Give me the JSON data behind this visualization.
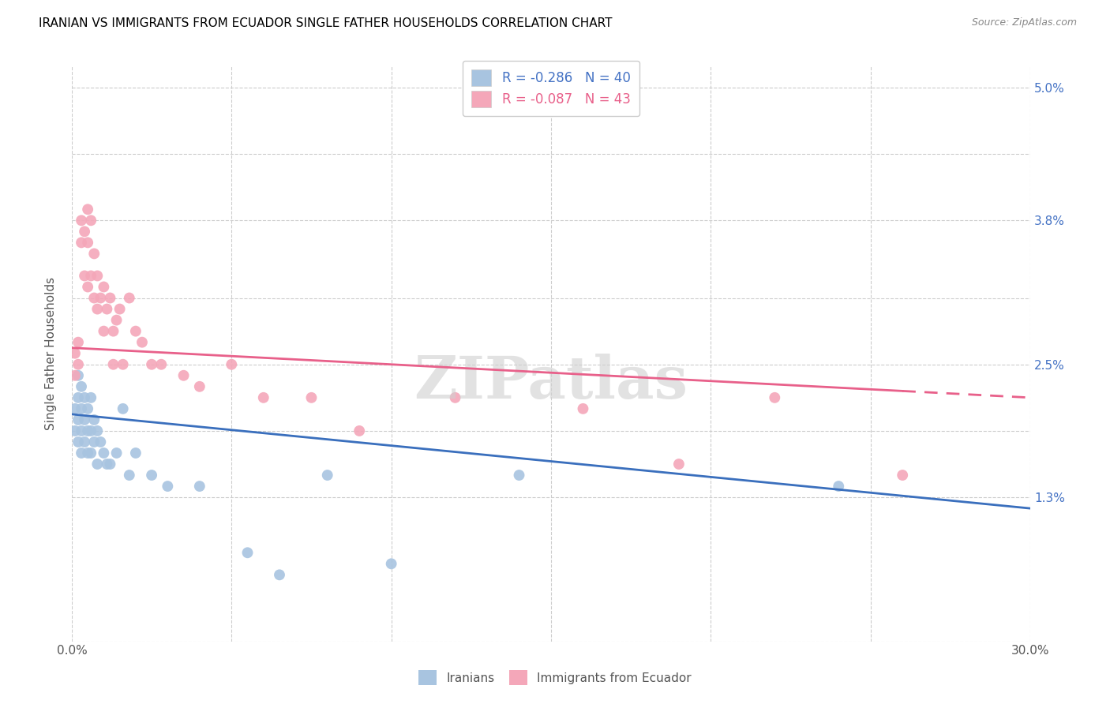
{
  "title": "IRANIAN VS IMMIGRANTS FROM ECUADOR SINGLE FATHER HOUSEHOLDS CORRELATION CHART",
  "source": "Source: ZipAtlas.com",
  "ylabel": "Single Father Households",
  "xlim": [
    0.0,
    0.3
  ],
  "ylim": [
    0.0,
    0.052
  ],
  "xticks": [
    0.0,
    0.05,
    0.1,
    0.15,
    0.2,
    0.25,
    0.3
  ],
  "xtick_labels": [
    "0.0%",
    "",
    "",
    "",
    "",
    "",
    "30.0%"
  ],
  "ytick_labels_right": [
    "",
    "1.3%",
    "",
    "2.5%",
    "",
    "3.8%",
    "",
    "5.0%"
  ],
  "yticks_right": [
    0.0,
    0.013,
    0.019,
    0.025,
    0.031,
    0.038,
    0.044,
    0.05
  ],
  "legend1_R": "-0.286",
  "legend1_N": "40",
  "legend2_R": "-0.087",
  "legend2_N": "43",
  "color_blue": "#a8c4e0",
  "color_pink": "#f4a7b9",
  "line_blue": "#3a6fbd",
  "line_pink": "#e8608a",
  "watermark": "ZIPatlas",
  "iranians_x": [
    0.001,
    0.001,
    0.002,
    0.002,
    0.002,
    0.002,
    0.003,
    0.003,
    0.003,
    0.003,
    0.004,
    0.004,
    0.004,
    0.005,
    0.005,
    0.005,
    0.006,
    0.006,
    0.006,
    0.007,
    0.007,
    0.008,
    0.008,
    0.009,
    0.01,
    0.011,
    0.012,
    0.014,
    0.016,
    0.018,
    0.02,
    0.025,
    0.03,
    0.04,
    0.055,
    0.065,
    0.08,
    0.1,
    0.14,
    0.24
  ],
  "iranians_y": [
    0.021,
    0.019,
    0.024,
    0.022,
    0.02,
    0.018,
    0.023,
    0.021,
    0.019,
    0.017,
    0.022,
    0.02,
    0.018,
    0.021,
    0.019,
    0.017,
    0.022,
    0.019,
    0.017,
    0.02,
    0.018,
    0.019,
    0.016,
    0.018,
    0.017,
    0.016,
    0.016,
    0.017,
    0.021,
    0.015,
    0.017,
    0.015,
    0.014,
    0.014,
    0.008,
    0.006,
    0.015,
    0.007,
    0.015,
    0.014
  ],
  "ecuador_x": [
    0.001,
    0.001,
    0.002,
    0.002,
    0.003,
    0.003,
    0.004,
    0.004,
    0.005,
    0.005,
    0.005,
    0.006,
    0.006,
    0.007,
    0.007,
    0.008,
    0.008,
    0.009,
    0.01,
    0.01,
    0.011,
    0.012,
    0.013,
    0.013,
    0.014,
    0.015,
    0.016,
    0.018,
    0.02,
    0.022,
    0.025,
    0.028,
    0.035,
    0.04,
    0.05,
    0.06,
    0.075,
    0.09,
    0.12,
    0.16,
    0.19,
    0.22,
    0.26
  ],
  "ecuador_y": [
    0.026,
    0.024,
    0.027,
    0.025,
    0.038,
    0.036,
    0.037,
    0.033,
    0.039,
    0.036,
    0.032,
    0.038,
    0.033,
    0.035,
    0.031,
    0.033,
    0.03,
    0.031,
    0.032,
    0.028,
    0.03,
    0.031,
    0.028,
    0.025,
    0.029,
    0.03,
    0.025,
    0.031,
    0.028,
    0.027,
    0.025,
    0.025,
    0.024,
    0.023,
    0.025,
    0.022,
    0.022,
    0.019,
    0.022,
    0.021,
    0.016,
    0.022,
    0.015
  ],
  "iran_line_x": [
    0.0,
    0.3
  ],
  "iran_line_y": [
    0.0205,
    0.012
  ],
  "ecu_line_x0": 0.0,
  "ecu_line_x_solid_end": 0.26,
  "ecu_line_x_end": 0.3,
  "ecu_line_y": [
    0.0265,
    0.022
  ]
}
